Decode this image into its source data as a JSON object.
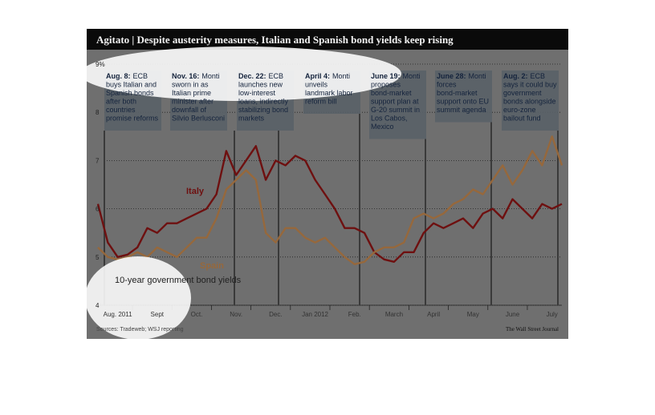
{
  "chart_data": {
    "type": "line",
    "title": "Agitato | Despite austerity measures, Italian and Spanish bond yields keep rising",
    "ylabel": "10-year government bond yields",
    "source": "Sources: Tradeweb; WSJ reporting",
    "credit": "The Wall Street Journal",
    "categories": [
      null,
      null,
      "Aug. 2011",
      null,
      null,
      null,
      "Sept",
      null,
      null,
      null,
      "Oct.",
      null,
      null,
      null,
      "Nov.",
      null,
      null,
      null,
      "Dec.",
      null,
      null,
      null,
      "Jan 2012",
      null,
      null,
      null,
      "Feb.",
      null,
      null,
      null,
      "March",
      null,
      null,
      null,
      "April",
      null,
      null,
      null,
      "May",
      null,
      null,
      null,
      "June",
      null,
      null,
      null,
      "July",
      null
    ],
    "series": [
      {
        "name": "Italy",
        "color": "#6e1010",
        "values": [
          6.1,
          5.3,
          5.0,
          5.05,
          5.2,
          5.6,
          5.5,
          5.7,
          5.7,
          5.8,
          5.9,
          6.0,
          6.3,
          7.2,
          6.7,
          7.0,
          7.3,
          6.6,
          7.0,
          6.9,
          7.1,
          7.0,
          6.6,
          6.3,
          6.0,
          5.6,
          5.6,
          5.5,
          5.1,
          4.95,
          4.9,
          5.1,
          5.1,
          5.5,
          5.7,
          5.6,
          5.7,
          5.8,
          5.6,
          5.9,
          6.0,
          5.8,
          6.2,
          6.0,
          5.8,
          6.1,
          6.0,
          6.1
        ]
      },
      {
        "name": "Spain",
        "color": "#96683c",
        "values": [
          5.2,
          5.0,
          4.95,
          5.0,
          5.1,
          5.0,
          5.2,
          5.1,
          5.0,
          5.2,
          5.4,
          5.4,
          5.8,
          6.4,
          6.6,
          6.8,
          6.6,
          5.5,
          5.3,
          5.6,
          5.6,
          5.4,
          5.3,
          5.4,
          5.2,
          5.0,
          4.85,
          4.9,
          5.1,
          5.2,
          5.2,
          5.3,
          5.8,
          5.9,
          5.8,
          5.9,
          6.1,
          6.2,
          6.4,
          6.3,
          6.6,
          6.9,
          6.5,
          6.8,
          7.2,
          6.9,
          7.5,
          6.9
        ]
      }
    ],
    "ylim": [
      4,
      9
    ],
    "yticks": [
      4,
      5,
      6,
      7,
      8,
      {
        "value": 9,
        "label": "9%"
      }
    ],
    "grid": true,
    "annotations": [
      {
        "date": "Aug. 8:",
        "text": [
          "ECB",
          "buys Italian and",
          "Spanish bonds",
          "after both",
          "countries",
          "promise reforms"
        ]
      },
      {
        "date": "Nov. 16:",
        "text": [
          "Monti",
          "sworn in as",
          "Italian prime",
          "minister after",
          "downfall of",
          "Silvio Berlusconi"
        ]
      },
      {
        "date": "Dec. 22:",
        "text": [
          "ECB",
          "launches new",
          "low-interest",
          "loans, indirectly",
          "stabilizing bond",
          "markets"
        ]
      },
      {
        "date": "April 4:",
        "text": [
          "Monti",
          "unveils",
          "landmark labor",
          "reform bill"
        ]
      },
      {
        "date": "June 19:",
        "text": [
          "Monti",
          "proposes",
          "bond-market",
          "support plan at",
          "G-20 summit in",
          "Los Cabos,",
          "Mexico"
        ]
      },
      {
        "date": "June 28:",
        "text": [
          "Monti",
          "forces",
          "bond-market",
          "support onto EU",
          "summit agenda"
        ]
      },
      {
        "date": "Aug. 2:",
        "text": [
          "ECB",
          "says it could buy",
          "government",
          "bonds alongside",
          "euro-zone",
          "bailout fund"
        ]
      }
    ]
  }
}
